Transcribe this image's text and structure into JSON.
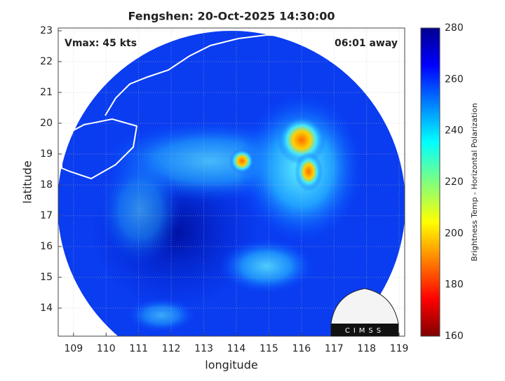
{
  "chart_data": {
    "type": "map",
    "title": "Fengshen: 20-Oct-2025 14:30:00",
    "annotations": [
      "Vmax: 45 kts",
      "06:01 away"
    ],
    "x_label": "longitude",
    "y_label": "latitude",
    "xlim": [
      108.53,
      119.17
    ],
    "xticks": [
      109,
      110,
      111,
      112,
      113,
      114,
      115,
      116,
      117,
      118,
      119
    ],
    "ylim": [
      13.09,
      23.09
    ],
    "yticks": [
      14,
      15,
      16,
      17,
      18,
      19,
      20,
      21,
      22,
      23
    ],
    "grid": true,
    "colorbar": {
      "label": "Brightness Temp - Horizontal Polarization",
      "lim": [
        160,
        280
      ],
      "ticks": [
        160,
        180,
        200,
        220,
        240,
        260,
        280
      ]
    },
    "logo": "CIMSS"
  }
}
